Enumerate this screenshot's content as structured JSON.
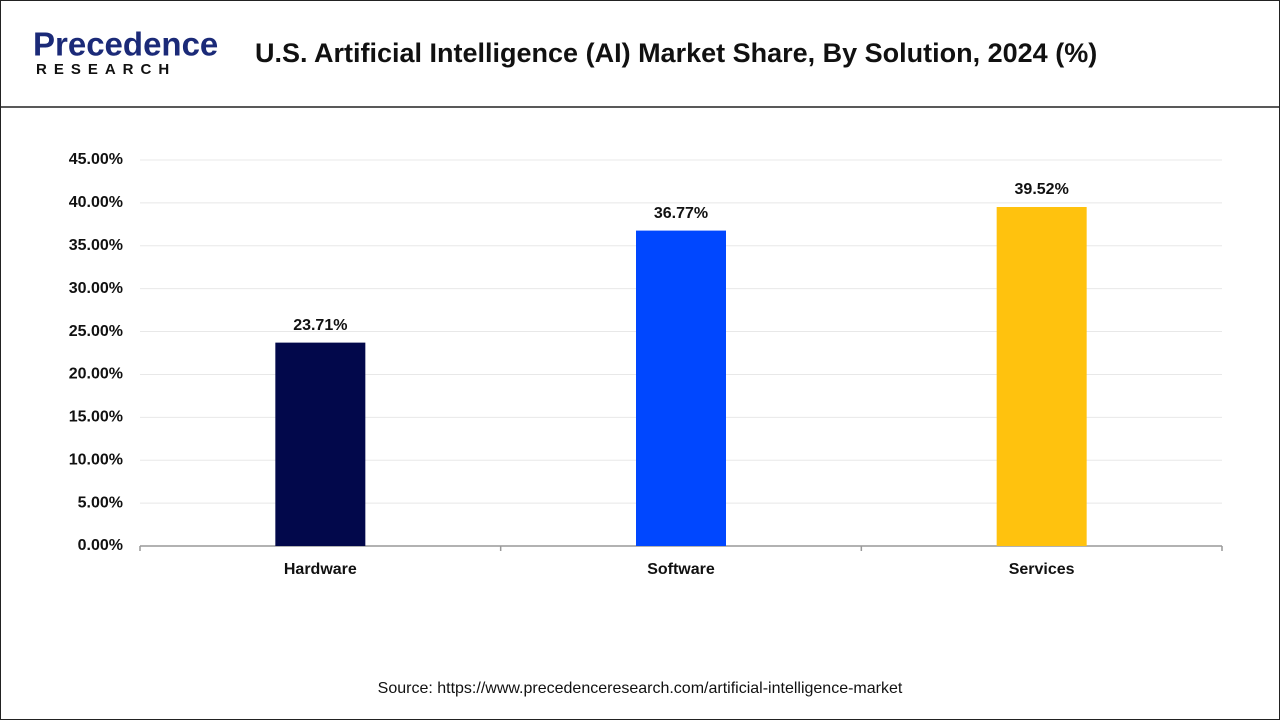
{
  "brand": {
    "name": "Precedence",
    "tagline": "RESEARCH"
  },
  "chart_data": {
    "type": "bar",
    "title": "U.S. Artificial Intelligence (AI) Market Share, By Solution, 2024 (%)",
    "categories": [
      "Hardware",
      "Software",
      "Services"
    ],
    "values": [
      23.71,
      36.77,
      39.52
    ],
    "value_labels": [
      "23.71%",
      "36.77%",
      "39.52%"
    ],
    "colors": [
      "#02084b",
      "#0047ff",
      "#ffc20e"
    ],
    "ylim": [
      0,
      45
    ],
    "yticks": [
      {
        "value": 0,
        "label": "0.00%"
      },
      {
        "value": 5,
        "label": "5.00%"
      },
      {
        "value": 10,
        "label": "10.00%"
      },
      {
        "value": 15,
        "label": "15.00%"
      },
      {
        "value": 20,
        "label": "20.00%"
      },
      {
        "value": 25,
        "label": "25.00%"
      },
      {
        "value": 30,
        "label": "30.00%"
      },
      {
        "value": 35,
        "label": "35.00%"
      },
      {
        "value": 40,
        "label": "40.00%"
      },
      {
        "value": 45,
        "label": "45.00%"
      }
    ],
    "grid": true,
    "source": "Source: https://www.precedenceresearch.com/artificial-intelligence-market"
  }
}
